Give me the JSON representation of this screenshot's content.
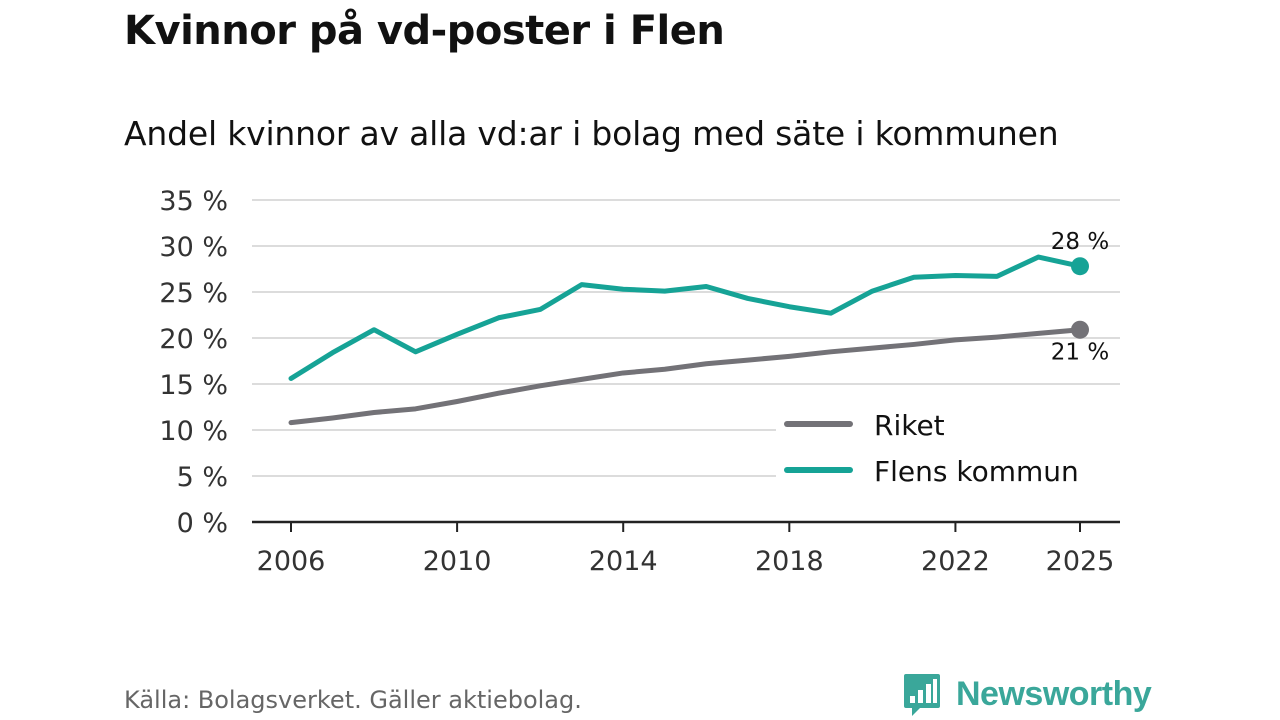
{
  "title": "Kvinnor på vd-poster i Flen",
  "subtitle": "Andel kvinnor av alla vd:ar i bolag med säte i kommunen",
  "source": "Källa: Bolagsverket. Gäller aktiebolag.",
  "brand": {
    "name": "Newsworthy",
    "color": "#3aa79a"
  },
  "chart_data": {
    "type": "line",
    "x": [
      2006,
      2007,
      2008,
      2009,
      2010,
      2011,
      2012,
      2013,
      2014,
      2015,
      2016,
      2017,
      2018,
      2019,
      2020,
      2021,
      2022,
      2023,
      2024,
      2025
    ],
    "xticks": [
      2006,
      2010,
      2014,
      2018,
      2022,
      2025
    ],
    "yticks": [
      0,
      5,
      10,
      15,
      20,
      25,
      30,
      35
    ],
    "ytick_labels": [
      "0 %",
      "5 %",
      "10 %",
      "15 %",
      "20 %",
      "25 %",
      "30 %",
      "35 %"
    ],
    "ylim": [
      0,
      35
    ],
    "xlabel": "",
    "ylabel": "",
    "legend_position": "bottom-right",
    "series": [
      {
        "name": "Riket",
        "color": "#737277",
        "values": [
          10.8,
          11.3,
          11.9,
          12.3,
          13.1,
          14.0,
          14.8,
          15.5,
          16.2,
          16.6,
          17.2,
          17.6,
          18.0,
          18.5,
          18.9,
          19.3,
          19.8,
          20.1,
          20.5,
          20.9
        ],
        "end_label": "21 %"
      },
      {
        "name": "Flens kommun",
        "color": "#16a396",
        "values": [
          15.6,
          18.4,
          20.9,
          18.5,
          20.4,
          22.2,
          23.1,
          25.8,
          25.3,
          25.1,
          25.6,
          24.3,
          23.4,
          22.7,
          25.1,
          26.6,
          26.8,
          26.7,
          28.8,
          27.8
        ],
        "end_label": "28 %"
      }
    ]
  }
}
